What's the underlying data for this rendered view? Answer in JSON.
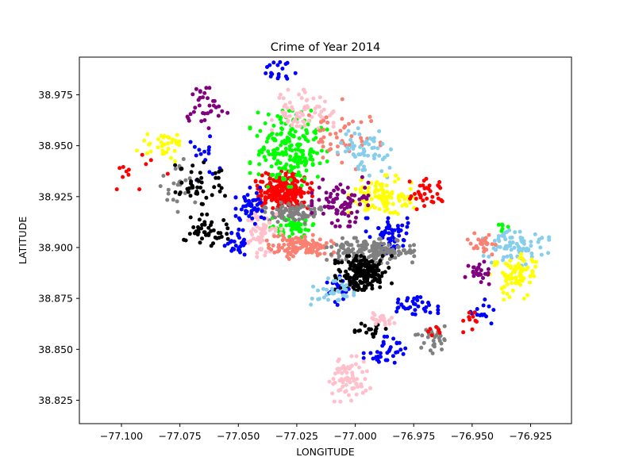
{
  "chart_data": {
    "type": "scatter",
    "title": "Crime of Year 2014",
    "xlabel": "LONGITUDE",
    "ylabel": "LATITUDE",
    "xlim": [
      -77.118,
      -76.9075
    ],
    "ylim": [
      38.8135,
      38.9935
    ],
    "xticks": [
      -77.1,
      -77.075,
      -77.05,
      -77.025,
      -77.0,
      -76.975,
      -76.95,
      -76.925
    ],
    "xtick_labels": [
      "−77.100",
      "−77.075",
      "−77.050",
      "−77.025",
      "−77.000",
      "−76.975",
      "−76.950",
      "−76.925"
    ],
    "yticks": [
      38.825,
      38.85,
      38.875,
      38.9,
      38.925,
      38.95,
      38.975
    ],
    "ytick_labels": [
      "38.825",
      "38.850",
      "38.875",
      "38.900",
      "38.925",
      "38.950",
      "38.975"
    ],
    "grid": false,
    "legend": "none",
    "colors": {
      "blue": "#0000ff",
      "red": "#ff0000",
      "green": "#00ff00",
      "black": "#000000",
      "gray": "#808080",
      "pink": "#ffc0cb",
      "salmon": "#fa8072",
      "skyblue": "#87ceeb",
      "yellow": "#ffff00",
      "purple": "#800080"
    },
    "clusters": [
      {
        "color": "red",
        "center": [
          -77.0305,
          38.9275
        ],
        "spread": [
          0.0055,
          0.0045
        ],
        "n": 230
      },
      {
        "color": "green",
        "center": [
          -77.0285,
          38.9485
        ],
        "spread": [
          0.0075,
          0.0085
        ],
        "n": 200
      },
      {
        "color": "green",
        "center": [
          -77.0265,
          38.9105
        ],
        "spread": [
          0.0045,
          0.0025
        ],
        "n": 60
      },
      {
        "color": "gray",
        "center": [
          -77.0265,
          38.9175
        ],
        "spread": [
          0.006,
          0.0025
        ],
        "n": 90
      },
      {
        "color": "pink",
        "center": [
          -77.0225,
          38.9665
        ],
        "spread": [
          0.006,
          0.005
        ],
        "n": 70
      },
      {
        "color": "pink",
        "center": [
          -77.0405,
          38.9075
        ],
        "spread": [
          0.004,
          0.0055
        ],
        "n": 60
      },
      {
        "color": "salmon",
        "center": [
          -77.0235,
          38.9005
        ],
        "spread": [
          0.0065,
          0.0028
        ],
        "n": 110
      },
      {
        "color": "salmon",
        "center": [
          -77.0065,
          38.9545
        ],
        "spread": [
          0.008,
          0.009
        ],
        "n": 45
      },
      {
        "color": "skyblue",
        "center": [
          -76.9955,
          38.9465
        ],
        "spread": [
          0.0055,
          0.0055
        ],
        "n": 60
      },
      {
        "color": "yellow",
        "center": [
          -76.9885,
          38.9255
        ],
        "spread": [
          0.0065,
          0.0045
        ],
        "n": 110
      },
      {
        "color": "red",
        "center": [
          -76.9705,
          38.9265
        ],
        "spread": [
          0.0045,
          0.0035
        ],
        "n": 35
      },
      {
        "color": "purple",
        "center": [
          -77.0065,
          38.9225
        ],
        "spread": [
          0.0055,
          0.0055
        ],
        "n": 85
      },
      {
        "color": "blue",
        "center": [
          -77.0445,
          38.9195
        ],
        "spread": [
          0.003,
          0.0045
        ],
        "n": 45
      },
      {
        "color": "blue",
        "center": [
          -77.0505,
          38.9025
        ],
        "spread": [
          0.0025,
          0.0035
        ],
        "n": 30
      },
      {
        "color": "blue",
        "center": [
          -77.0325,
          38.9855
        ],
        "spread": [
          0.0035,
          0.0025
        ],
        "n": 18
      },
      {
        "color": "blue",
        "center": [
          -77.0645,
          38.9425
        ],
        "spread": [
          0.003,
          0.0055
        ],
        "n": 15
      },
      {
        "color": "blue",
        "center": [
          -76.9855,
          38.9045
        ],
        "spread": [
          0.0045,
          0.0045
        ],
        "n": 60
      },
      {
        "color": "blue",
        "center": [
          -77.0075,
          38.8795
        ],
        "spread": [
          0.0025,
          0.0035
        ],
        "n": 20
      },
      {
        "color": "blue",
        "center": [
          -76.9745,
          38.8715
        ],
        "spread": [
          0.0045,
          0.0025
        ],
        "n": 35
      },
      {
        "color": "blue",
        "center": [
          -76.9865,
          38.8485
        ],
        "spread": [
          0.0045,
          0.0035
        ],
        "n": 35
      },
      {
        "color": "blue",
        "center": [
          -76.9455,
          38.8685
        ],
        "spread": [
          0.003,
          0.003
        ],
        "n": 15
      },
      {
        "color": "gray",
        "center": [
          -76.9935,
          38.8985
        ],
        "spread": [
          0.0085,
          0.0028
        ],
        "n": 170
      },
      {
        "color": "gray",
        "center": [
          -77.0745,
          38.9305
        ],
        "spread": [
          0.004,
          0.0065
        ],
        "n": 25
      },
      {
        "color": "gray",
        "center": [
          -76.9665,
          38.8545
        ],
        "spread": [
          0.0035,
          0.0035
        ],
        "n": 30
      },
      {
        "color": "black",
        "center": [
          -76.9965,
          38.8875
        ],
        "spread": [
          0.0055,
          0.0038
        ],
        "n": 190
      },
      {
        "color": "black",
        "center": [
          -77.0665,
          38.9305
        ],
        "spread": [
          0.0055,
          0.0055
        ],
        "n": 45
      },
      {
        "color": "black",
        "center": [
          -77.0645,
          38.9085
        ],
        "spread": [
          0.0055,
          0.0035
        ],
        "n": 45
      },
      {
        "color": "black",
        "center": [
          -76.9925,
          38.8595
        ],
        "spread": [
          0.0035,
          0.0018
        ],
        "n": 20
      },
      {
        "color": "skyblue",
        "center": [
          -77.0105,
          38.8775
        ],
        "spread": [
          0.0045,
          0.0035
        ],
        "n": 35
      },
      {
        "color": "skyblue",
        "center": [
          -76.9305,
          38.9005
        ],
        "spread": [
          0.0075,
          0.0045
        ],
        "n": 80
      },
      {
        "color": "yellow",
        "center": [
          -76.9325,
          38.8865
        ],
        "spread": [
          0.0045,
          0.0055
        ],
        "n": 80
      },
      {
        "color": "yellow",
        "center": [
          -77.0835,
          38.9505
        ],
        "spread": [
          0.0045,
          0.0045
        ],
        "n": 35
      },
      {
        "color": "purple",
        "center": [
          -77.0645,
          38.9685
        ],
        "spread": [
          0.0045,
          0.0045
        ],
        "n": 35
      },
      {
        "color": "purple",
        "center": [
          -76.9475,
          38.8875
        ],
        "spread": [
          0.0025,
          0.0025
        ],
        "n": 25
      },
      {
        "color": "salmon",
        "center": [
          -76.9455,
          38.9015
        ],
        "spread": [
          0.0035,
          0.0025
        ],
        "n": 25
      },
      {
        "color": "pink",
        "center": [
          -77.0025,
          38.8345
        ],
        "spread": [
          0.0045,
          0.0055
        ],
        "n": 70
      },
      {
        "color": "pink",
        "center": [
          -76.9885,
          38.8645
        ],
        "spread": [
          0.0035,
          0.0015
        ],
        "n": 20
      },
      {
        "color": "red",
        "center": [
          -77.0945,
          38.9385
        ],
        "spread": [
          0.0065,
          0.0045
        ],
        "n": 12
      },
      {
        "color": "red",
        "center": [
          -76.9505,
          38.8625
        ],
        "spread": [
          0.0015,
          0.0025
        ],
        "n": 10
      },
      {
        "color": "red",
        "center": [
          -76.9655,
          38.8595
        ],
        "spread": [
          0.0015,
          0.0012
        ],
        "n": 6
      },
      {
        "color": "green",
        "center": [
          -76.9365,
          38.9105
        ],
        "spread": [
          0.0015,
          0.0015
        ],
        "n": 6
      }
    ]
  }
}
